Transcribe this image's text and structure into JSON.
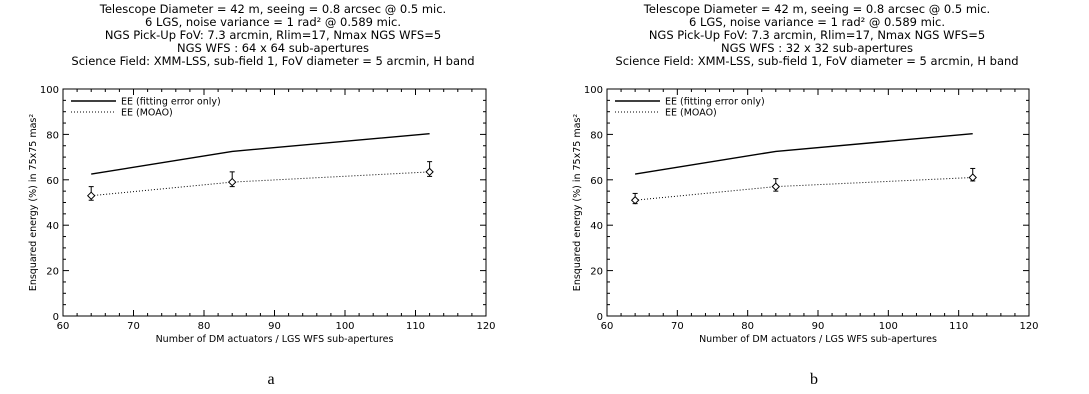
{
  "chart_data": [
    {
      "type": "line",
      "panel_label": "a",
      "title_lines": [
        "Telescope Diameter = 42 m, seeing = 0.8 arcsec @ 0.5 mic.",
        "6 LGS, noise variance = 1 rad² @ 0.589 mic.",
        "NGS Pick-Up FoV: 7.3 arcmin, Rlim=17, Nmax NGS WFS=5",
        "NGS WFS : 64 x 64 sub-apertures",
        "Science Field: XMM-LSS, sub-field 1, FoV diameter = 5 arcmin, H band"
      ],
      "xlabel": "Number of DM actuators / LGS WFS sub-apertures",
      "ylabel": "Ensquared energy (%) in 75x75 mas²",
      "xlim": [
        60,
        120
      ],
      "ylim": [
        0,
        100
      ],
      "xticks": [
        "60",
        "70",
        "80",
        "90",
        "100",
        "110",
        "120"
      ],
      "yticks": [
        "0",
        "20",
        "40",
        "60",
        "80",
        "100"
      ],
      "legend_position": "top-left",
      "series": [
        {
          "name": "EE (fitting error only)",
          "style": "solid",
          "x": [
            64,
            84,
            112
          ],
          "y": [
            62.5,
            72.5,
            80.3
          ]
        },
        {
          "name": "EE (MOAO)",
          "style": "dotted",
          "x": [
            64,
            84,
            112
          ],
          "y": [
            53,
            59,
            63.5
          ],
          "err": [
            [
              51,
              57
            ],
            [
              57,
              63.5
            ],
            [
              61.5,
              68
            ]
          ]
        }
      ]
    },
    {
      "type": "line",
      "panel_label": "b",
      "title_lines": [
        "Telescope Diameter = 42 m, seeing = 0.8 arcsec @ 0.5 mic.",
        "6 LGS, noise variance = 1 rad² @ 0.589 mic.",
        "NGS Pick-Up FoV: 7.3 arcmin, Rlim=17, Nmax NGS WFS=5",
        "NGS WFS : 32 x 32 sub-apertures",
        "Science Field: XMM-LSS, sub-field 1, FoV diameter = 5 arcmin, H band"
      ],
      "xlabel": "Number of DM actuators / LGS WFS sub-apertures",
      "ylabel": "Ensquared energy (%) in 75x75 mas²",
      "xlim": [
        60,
        120
      ],
      "ylim": [
        0,
        100
      ],
      "xticks": [
        "60",
        "70",
        "80",
        "90",
        "100",
        "110",
        "120"
      ],
      "yticks": [
        "0",
        "20",
        "40",
        "60",
        "80",
        "100"
      ],
      "legend_position": "top-left",
      "series": [
        {
          "name": "EE (fitting error only)",
          "style": "solid",
          "x": [
            64,
            84,
            112
          ],
          "y": [
            62.5,
            72.5,
            80.3
          ]
        },
        {
          "name": "EE (MOAO)",
          "style": "dotted",
          "x": [
            64,
            84,
            112
          ],
          "y": [
            51,
            57,
            61
          ],
          "err": [
            [
              49.5,
              54
            ],
            [
              55,
              60.5
            ],
            [
              59.5,
              65
            ]
          ]
        }
      ]
    }
  ]
}
